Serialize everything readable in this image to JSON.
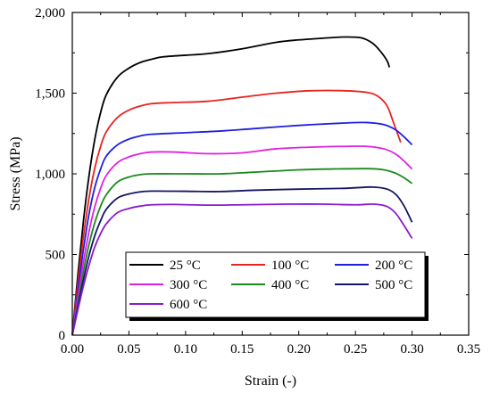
{
  "chart_data": {
    "type": "line",
    "title": "",
    "xlabel": "Strain (-)",
    "ylabel": "Stress (MPa)",
    "xlim": [
      0,
      0.35
    ],
    "ylim": [
      0,
      2000
    ],
    "xticks": [
      "0.00",
      "0.05",
      "0.10",
      "0.15",
      "0.20",
      "0.25",
      "0.30",
      "0.35"
    ],
    "yticks": [
      "0",
      "500",
      "1,000",
      "1,500",
      "2,000"
    ],
    "grid": false,
    "legend_position": "bottom-center",
    "series": [
      {
        "name": "25 °C",
        "color": "#000000",
        "points": [
          [
            0,
            0
          ],
          [
            0.005,
            380
          ],
          [
            0.01,
            720
          ],
          [
            0.015,
            1000
          ],
          [
            0.02,
            1220
          ],
          [
            0.025,
            1380
          ],
          [
            0.03,
            1490
          ],
          [
            0.04,
            1600
          ],
          [
            0.05,
            1655
          ],
          [
            0.06,
            1690
          ],
          [
            0.07,
            1710
          ],
          [
            0.08,
            1725
          ],
          [
            0.1,
            1735
          ],
          [
            0.12,
            1745
          ],
          [
            0.15,
            1775
          ],
          [
            0.18,
            1815
          ],
          [
            0.2,
            1830
          ],
          [
            0.22,
            1840
          ],
          [
            0.24,
            1848
          ],
          [
            0.255,
            1843
          ],
          [
            0.265,
            1810
          ],
          [
            0.272,
            1760
          ],
          [
            0.278,
            1700
          ],
          [
            0.28,
            1660
          ]
        ]
      },
      {
        "name": "100 °C",
        "color": "#e8231f",
        "points": [
          [
            0,
            0
          ],
          [
            0.005,
            330
          ],
          [
            0.01,
            620
          ],
          [
            0.015,
            860
          ],
          [
            0.02,
            1040
          ],
          [
            0.025,
            1170
          ],
          [
            0.03,
            1260
          ],
          [
            0.04,
            1350
          ],
          [
            0.05,
            1395
          ],
          [
            0.06,
            1420
          ],
          [
            0.07,
            1435
          ],
          [
            0.09,
            1442
          ],
          [
            0.12,
            1450
          ],
          [
            0.15,
            1475
          ],
          [
            0.18,
            1500
          ],
          [
            0.21,
            1515
          ],
          [
            0.24,
            1515
          ],
          [
            0.26,
            1505
          ],
          [
            0.27,
            1480
          ],
          [
            0.278,
            1420
          ],
          [
            0.284,
            1310
          ],
          [
            0.29,
            1195
          ]
        ]
      },
      {
        "name": "200 °C",
        "color": "#2020e0",
        "points": [
          [
            0,
            0
          ],
          [
            0.005,
            280
          ],
          [
            0.01,
            540
          ],
          [
            0.015,
            760
          ],
          [
            0.02,
            920
          ],
          [
            0.025,
            1030
          ],
          [
            0.03,
            1110
          ],
          [
            0.04,
            1180
          ],
          [
            0.05,
            1215
          ],
          [
            0.06,
            1235
          ],
          [
            0.07,
            1245
          ],
          [
            0.1,
            1255
          ],
          [
            0.13,
            1265
          ],
          [
            0.16,
            1280
          ],
          [
            0.2,
            1300
          ],
          [
            0.24,
            1315
          ],
          [
            0.26,
            1318
          ],
          [
            0.275,
            1305
          ],
          [
            0.285,
            1275
          ],
          [
            0.292,
            1235
          ],
          [
            0.3,
            1180
          ]
        ]
      },
      {
        "name": "300 °C",
        "color": "#e020e0",
        "points": [
          [
            0,
            0
          ],
          [
            0.005,
            240
          ],
          [
            0.01,
            460
          ],
          [
            0.015,
            650
          ],
          [
            0.02,
            800
          ],
          [
            0.025,
            910
          ],
          [
            0.03,
            990
          ],
          [
            0.04,
            1070
          ],
          [
            0.05,
            1105
          ],
          [
            0.06,
            1125
          ],
          [
            0.07,
            1135
          ],
          [
            0.09,
            1135
          ],
          [
            0.12,
            1125
          ],
          [
            0.15,
            1130
          ],
          [
            0.18,
            1155
          ],
          [
            0.21,
            1165
          ],
          [
            0.24,
            1170
          ],
          [
            0.26,
            1170
          ],
          [
            0.275,
            1155
          ],
          [
            0.285,
            1125
          ],
          [
            0.292,
            1085
          ],
          [
            0.3,
            1030
          ]
        ]
      },
      {
        "name": "400 °C",
        "color": "#1a8a1a",
        "points": [
          [
            0,
            0
          ],
          [
            0.005,
            200
          ],
          [
            0.01,
            400
          ],
          [
            0.015,
            570
          ],
          [
            0.02,
            700
          ],
          [
            0.025,
            800
          ],
          [
            0.03,
            870
          ],
          [
            0.04,
            950
          ],
          [
            0.05,
            980
          ],
          [
            0.06,
            995
          ],
          [
            0.07,
            1000
          ],
          [
            0.1,
            1000
          ],
          [
            0.13,
            1000
          ],
          [
            0.16,
            1010
          ],
          [
            0.2,
            1025
          ],
          [
            0.23,
            1030
          ],
          [
            0.26,
            1032
          ],
          [
            0.275,
            1025
          ],
          [
            0.285,
            1005
          ],
          [
            0.293,
            975
          ],
          [
            0.3,
            940
          ]
        ]
      },
      {
        "name": "500 °C",
        "color": "#151565",
        "points": [
          [
            0,
            0
          ],
          [
            0.005,
            180
          ],
          [
            0.01,
            350
          ],
          [
            0.015,
            500
          ],
          [
            0.02,
            620
          ],
          [
            0.025,
            710
          ],
          [
            0.03,
            780
          ],
          [
            0.04,
            850
          ],
          [
            0.05,
            875
          ],
          [
            0.06,
            888
          ],
          [
            0.07,
            893
          ],
          [
            0.1,
            892
          ],
          [
            0.13,
            890
          ],
          [
            0.16,
            898
          ],
          [
            0.2,
            905
          ],
          [
            0.24,
            910
          ],
          [
            0.265,
            918
          ],
          [
            0.278,
            905
          ],
          [
            0.286,
            870
          ],
          [
            0.293,
            800
          ],
          [
            0.3,
            700
          ]
        ]
      },
      {
        "name": "600 °C",
        "color": "#8a1acf",
        "points": [
          [
            0,
            0
          ],
          [
            0.005,
            160
          ],
          [
            0.01,
            310
          ],
          [
            0.015,
            440
          ],
          [
            0.02,
            550
          ],
          [
            0.025,
            630
          ],
          [
            0.03,
            690
          ],
          [
            0.04,
            760
          ],
          [
            0.05,
            785
          ],
          [
            0.06,
            800
          ],
          [
            0.07,
            808
          ],
          [
            0.09,
            810
          ],
          [
            0.12,
            806
          ],
          [
            0.15,
            808
          ],
          [
            0.19,
            812
          ],
          [
            0.22,
            812
          ],
          [
            0.25,
            808
          ],
          [
            0.265,
            812
          ],
          [
            0.277,
            800
          ],
          [
            0.285,
            760
          ],
          [
            0.292,
            690
          ],
          [
            0.3,
            600
          ]
        ]
      }
    ]
  }
}
